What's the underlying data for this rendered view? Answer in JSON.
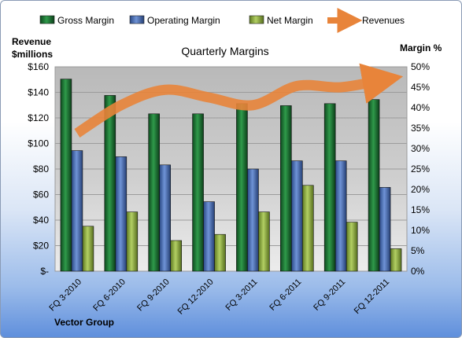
{
  "chart_data": {
    "type": "bar",
    "title": "Quarterly Margins",
    "footer": "Vector Group",
    "left_axis_label": [
      "Revenue",
      "$millions"
    ],
    "right_axis_label": "Margin %",
    "categories": [
      "FQ 3-2010",
      "FQ 6-2010",
      "FQ 9-2010",
      "FQ 12-2010",
      "FQ 3-2011",
      "FQ 6-2011",
      "FQ 9-2011",
      "FQ 12-2011"
    ],
    "left_axis": {
      "min": 0,
      "max": 160,
      "step": 20,
      "tick_labels": [
        "$-",
        "$20",
        "$40",
        "$60",
        "$80",
        "$100",
        "$120",
        "$140",
        "$160"
      ]
    },
    "right_axis": {
      "min": 0,
      "max": 50,
      "step": 5,
      "tick_labels": [
        "0%",
        "5%",
        "10%",
        "15%",
        "20%",
        "25%",
        "30%",
        "35%",
        "40%",
        "45%",
        "50%"
      ]
    },
    "series": [
      {
        "name": "Gross Margin",
        "type": "bar",
        "axis": "right",
        "color": "#1e7a35",
        "values": [
          47,
          43,
          38.5,
          38.5,
          41,
          40.5,
          41,
          42
        ]
      },
      {
        "name": "Operating Margin",
        "type": "bar",
        "axis": "right",
        "color": "#4a6fb5",
        "values": [
          29.5,
          28,
          26,
          17,
          25,
          27,
          27,
          20.5
        ]
      },
      {
        "name": "Net Margin",
        "type": "bar",
        "axis": "right",
        "color": "#8fae3e",
        "values": [
          11,
          14.5,
          7.5,
          9,
          14.5,
          21,
          12,
          5.5
        ]
      },
      {
        "name": "Revenues",
        "type": "line",
        "axis": "left",
        "color": "#e8843a",
        "values": [
          108,
          130,
          142,
          136,
          130,
          145,
          144,
          150
        ]
      }
    ],
    "grid": true,
    "legend": "top"
  }
}
